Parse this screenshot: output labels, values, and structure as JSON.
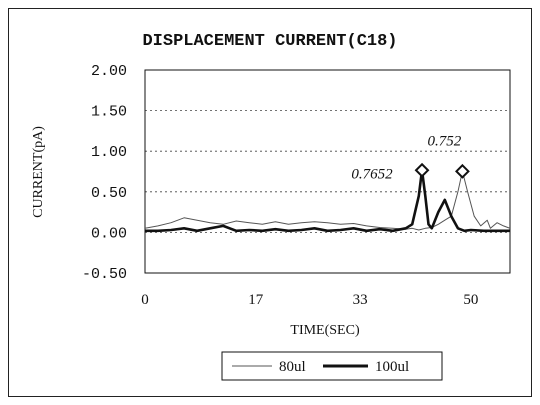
{
  "chart_data": {
    "type": "line",
    "title": "DISPLACEMENT CURRENT(C18)",
    "xlabel": "TIME(SEC)",
    "ylabel": "CURRENT(pA)",
    "xlim": [
      0,
      56
    ],
    "ylim": [
      -0.5,
      2.0
    ],
    "x_ticks": [
      "0",
      "17",
      "33",
      "50"
    ],
    "x_tick_values": [
      0,
      17,
      33,
      50
    ],
    "y_ticks": [
      "2.00",
      "1.50",
      "1.00",
      "0.50",
      "0.00",
      "-0.50"
    ],
    "y_tick_values": [
      2.0,
      1.5,
      1.0,
      0.5,
      0.0,
      -0.5
    ],
    "grid": "horizontal dotted",
    "legend_position": "bottom",
    "series": [
      {
        "name": "80ul",
        "color": "#555555",
        "x": [
          0,
          2,
          4,
          6,
          8,
          10,
          12,
          14,
          16,
          18,
          20,
          22,
          24,
          26,
          28,
          30,
          32,
          34,
          36,
          38,
          40,
          41,
          42,
          43,
          44,
          45,
          46,
          47,
          48,
          48.7,
          49.5,
          50.5,
          51.5,
          52.5,
          53,
          54,
          55,
          56
        ],
        "y": [
          0.05,
          0.08,
          0.12,
          0.18,
          0.15,
          0.12,
          0.1,
          0.14,
          0.12,
          0.1,
          0.13,
          0.1,
          0.12,
          0.13,
          0.12,
          0.1,
          0.11,
          0.08,
          0.06,
          0.05,
          0.04,
          0.05,
          0.03,
          0.05,
          0.06,
          0.1,
          0.15,
          0.2,
          0.5,
          0.752,
          0.5,
          0.2,
          0.08,
          0.15,
          0.05,
          0.12,
          0.08,
          0.05
        ]
      },
      {
        "name": "100ul",
        "color": "#111111",
        "x": [
          0,
          2,
          4,
          6,
          8,
          10,
          12,
          14,
          16,
          18,
          20,
          22,
          24,
          26,
          28,
          30,
          32,
          34,
          36,
          38,
          40,
          41,
          42,
          42.5,
          43,
          43.5,
          44,
          45,
          46,
          47,
          48,
          49,
          50,
          52,
          54,
          56
        ],
        "y": [
          0.02,
          0.02,
          0.03,
          0.05,
          0.02,
          0.05,
          0.08,
          0.02,
          0.03,
          0.02,
          0.04,
          0.02,
          0.03,
          0.05,
          0.02,
          0.03,
          0.05,
          0.02,
          0.04,
          0.02,
          0.05,
          0.1,
          0.45,
          0.7652,
          0.45,
          0.1,
          0.05,
          0.25,
          0.4,
          0.2,
          0.05,
          0.02,
          0.03,
          0.02,
          0.02,
          0.02
        ]
      }
    ],
    "annotations": [
      {
        "text": "0.7652",
        "x": 42.5,
        "y": 0.7652,
        "series": "100ul"
      },
      {
        "text": "0.752",
        "x": 48.7,
        "y": 0.752,
        "series": "80ul"
      }
    ]
  }
}
